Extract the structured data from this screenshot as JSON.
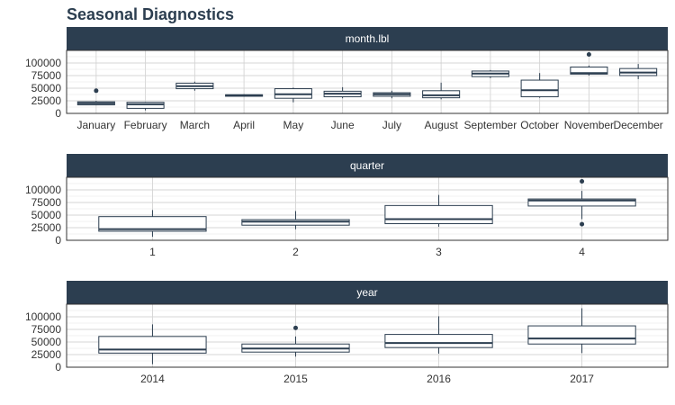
{
  "title": "Seasonal Diagnostics",
  "chart_data": [
    {
      "type": "box",
      "facet": "month.lbl",
      "ylim": [
        0,
        125000
      ],
      "yticks": [
        "0",
        "25000",
        "50000",
        "75000",
        "100000"
      ],
      "boxes": [
        {
          "label": "January",
          "min": 16000,
          "q1": 17000,
          "median": 20000,
          "q3": 23000,
          "max": 25000,
          "outliers": [
            45000
          ]
        },
        {
          "label": "February",
          "min": 6000,
          "q1": 10000,
          "median": 18000,
          "q3": 22000,
          "max": 23000,
          "outliers": []
        },
        {
          "label": "March",
          "min": 45000,
          "q1": 49000,
          "median": 54000,
          "q3": 60000,
          "max": 63000,
          "outliers": []
        },
        {
          "label": "April",
          "min": 33000,
          "q1": 34000,
          "median": 36000,
          "q3": 37000,
          "max": 38000,
          "outliers": []
        },
        {
          "label": "May",
          "min": 22000,
          "q1": 30000,
          "median": 38000,
          "q3": 49000,
          "max": 51000,
          "outliers": []
        },
        {
          "label": "June",
          "min": 30000,
          "q1": 33000,
          "median": 39000,
          "q3": 44000,
          "max": 52000,
          "outliers": []
        },
        {
          "label": "July",
          "min": 30000,
          "q1": 34000,
          "median": 38000,
          "q3": 41000,
          "max": 45000,
          "outliers": []
        },
        {
          "label": "August",
          "min": 28000,
          "q1": 31000,
          "median": 36000,
          "q3": 45000,
          "max": 61000,
          "outliers": []
        },
        {
          "label": "September",
          "min": 70000,
          "q1": 73000,
          "median": 79000,
          "q3": 84000,
          "max": 86000,
          "outliers": []
        },
        {
          "label": "October",
          "min": 31000,
          "q1": 33000,
          "median": 46000,
          "q3": 66000,
          "max": 80000,
          "outliers": []
        },
        {
          "label": "November",
          "min": 75000,
          "q1": 78000,
          "median": 80000,
          "q3": 92000,
          "max": 95000,
          "outliers": [
            117000
          ]
        },
        {
          "label": "December",
          "min": 68000,
          "q1": 75000,
          "median": 81000,
          "q3": 89000,
          "max": 98000,
          "outliers": []
        }
      ]
    },
    {
      "type": "box",
      "facet": "quarter",
      "ylim": [
        0,
        125000
      ],
      "yticks": [
        "0",
        "25000",
        "50000",
        "75000",
        "100000"
      ],
      "boxes": [
        {
          "label": "1",
          "min": 7000,
          "q1": 18000,
          "median": 22000,
          "q3": 47000,
          "max": 60000,
          "outliers": []
        },
        {
          "label": "2",
          "min": 22000,
          "q1": 30000,
          "median": 37000,
          "q3": 41000,
          "max": 58000,
          "outliers": []
        },
        {
          "label": "3",
          "min": 27000,
          "q1": 33000,
          "median": 42000,
          "q3": 69000,
          "max": 90000,
          "outliers": []
        },
        {
          "label": "4",
          "min": 42000,
          "q1": 68000,
          "median": 79000,
          "q3": 82000,
          "max": 98000,
          "outliers": [
            117000,
            32000
          ]
        }
      ]
    },
    {
      "type": "box",
      "facet": "year",
      "ylim": [
        0,
        125000
      ],
      "yticks": [
        "0",
        "25000",
        "50000",
        "75000",
        "100000"
      ],
      "boxes": [
        {
          "label": "2014",
          "min": 6000,
          "q1": 28000,
          "median": 35000,
          "q3": 61000,
          "max": 85000,
          "outliers": []
        },
        {
          "label": "2015",
          "min": 21000,
          "q1": 30000,
          "median": 37000,
          "q3": 46000,
          "max": 61000,
          "outliers": [
            78000
          ]
        },
        {
          "label": "2016",
          "min": 27000,
          "q1": 39000,
          "median": 48000,
          "q3": 65000,
          "max": 101000,
          "outliers": []
        },
        {
          "label": "2017",
          "min": 28000,
          "q1": 46000,
          "median": 57000,
          "q3": 82000,
          "max": 117000,
          "outliers": []
        }
      ]
    }
  ]
}
